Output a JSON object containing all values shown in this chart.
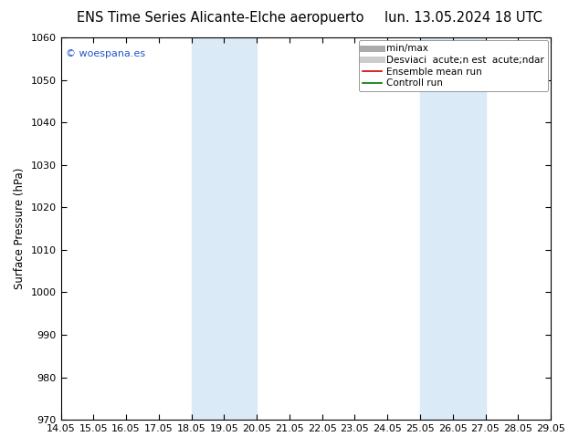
{
  "title_left": "ENS Time Series Alicante-Elche aeropuerto",
  "title_right": "lun. 13.05.2024 18 UTC",
  "ylabel": "Surface Pressure (hPa)",
  "ylim": [
    970,
    1060
  ],
  "yticks": [
    970,
    980,
    990,
    1000,
    1010,
    1020,
    1030,
    1040,
    1050,
    1060
  ],
  "xtick_labels": [
    "14.05",
    "15.05",
    "16.05",
    "17.05",
    "18.05",
    "19.05",
    "20.05",
    "21.05",
    "22.05",
    "23.05",
    "24.05",
    "25.05",
    "26.05",
    "27.05",
    "28.05",
    "29.05"
  ],
  "xtick_positions": [
    0,
    1,
    2,
    3,
    4,
    5,
    6,
    7,
    8,
    9,
    10,
    11,
    12,
    13,
    14,
    15
  ],
  "shaded_bands": [
    {
      "xmin": 4,
      "xmax": 6,
      "color": "#daeaf7",
      "alpha": 1.0
    },
    {
      "xmin": 11,
      "xmax": 13,
      "color": "#daeaf7",
      "alpha": 1.0
    }
  ],
  "copyright_text": "© woespana.es",
  "copyright_color": "#2255cc",
  "legend_items": [
    {
      "label": "min/max",
      "color": "#aaaaaa",
      "lw": 5,
      "ls": "-"
    },
    {
      "label": "Desviaci  acute;n est  acute;ndar",
      "color": "#cccccc",
      "lw": 5,
      "ls": "-"
    },
    {
      "label": "Ensemble mean run",
      "color": "#cc0000",
      "lw": 1.2,
      "ls": "-"
    },
    {
      "label": "Controll run",
      "color": "#007700",
      "lw": 1.2,
      "ls": "-"
    }
  ],
  "bg_color": "#ffffff",
  "plot_bg_color": "#ffffff",
  "title_fontsize": 10.5,
  "axis_fontsize": 8.5,
  "tick_fontsize": 8,
  "legend_fontsize": 7.5
}
